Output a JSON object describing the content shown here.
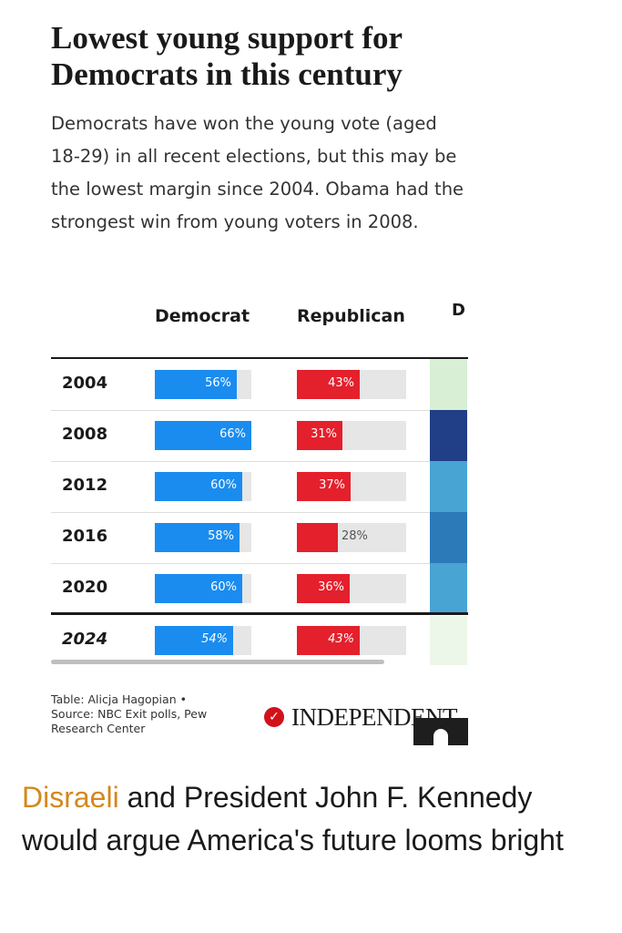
{
  "chart_data": {
    "type": "table",
    "title": "Lowest young support for Democrats in this century",
    "subtitle": "Democrats have won the young vote (aged 18-29) in all recent elections, but this may be the lowest margin since 2004. Obama had the strongest win from young voters in 2008.",
    "columns": [
      "Democrat",
      "Republican",
      "D"
    ],
    "rows": [
      {
        "year": "2004",
        "democrat": 56,
        "democrat_label": "56%",
        "republican": 43,
        "republican_label": "43%",
        "d_color": "#d8efd6"
      },
      {
        "year": "2008",
        "democrat": 66,
        "democrat_label": "66%",
        "republican": 31,
        "republican_label": "31%",
        "d_color": "#203f86"
      },
      {
        "year": "2012",
        "democrat": 60,
        "democrat_label": "60%",
        "republican": 37,
        "republican_label": "37%",
        "d_color": "#48a4d2"
      },
      {
        "year": "2016",
        "democrat": 58,
        "democrat_label": "58%",
        "republican": 28,
        "republican_label": "28%",
        "d_color": "#2c7ab8"
      },
      {
        "year": "2020",
        "democrat": 60,
        "democrat_label": "60%",
        "republican": 36,
        "republican_label": "36%",
        "d_color": "#48a4d2"
      },
      {
        "year": "2024",
        "democrat": 54,
        "democrat_label": "54%",
        "republican": 43,
        "republican_label": "43%",
        "d_color": "#edf7e9"
      }
    ],
    "colors": {
      "democrat": "#1a8cf0",
      "republican": "#e4202c",
      "track": "#e6e6e6"
    }
  },
  "credit": {
    "line1": "Table: Alicja Hagopian •",
    "line2": "Source: NBC Exit polls, Pew",
    "line3": "Research Center"
  },
  "logo": {
    "text": "INDEPENDENT",
    "accent": "#d2121a"
  },
  "caption": {
    "link_text": "Disraeli",
    "rest": " and President John F. Kennedy would argue America's future looms bright",
    "link_color": "#d4881c"
  },
  "icons": {
    "logo_badge": "check-badge-icon",
    "avatar": "user-avatar-icon"
  }
}
